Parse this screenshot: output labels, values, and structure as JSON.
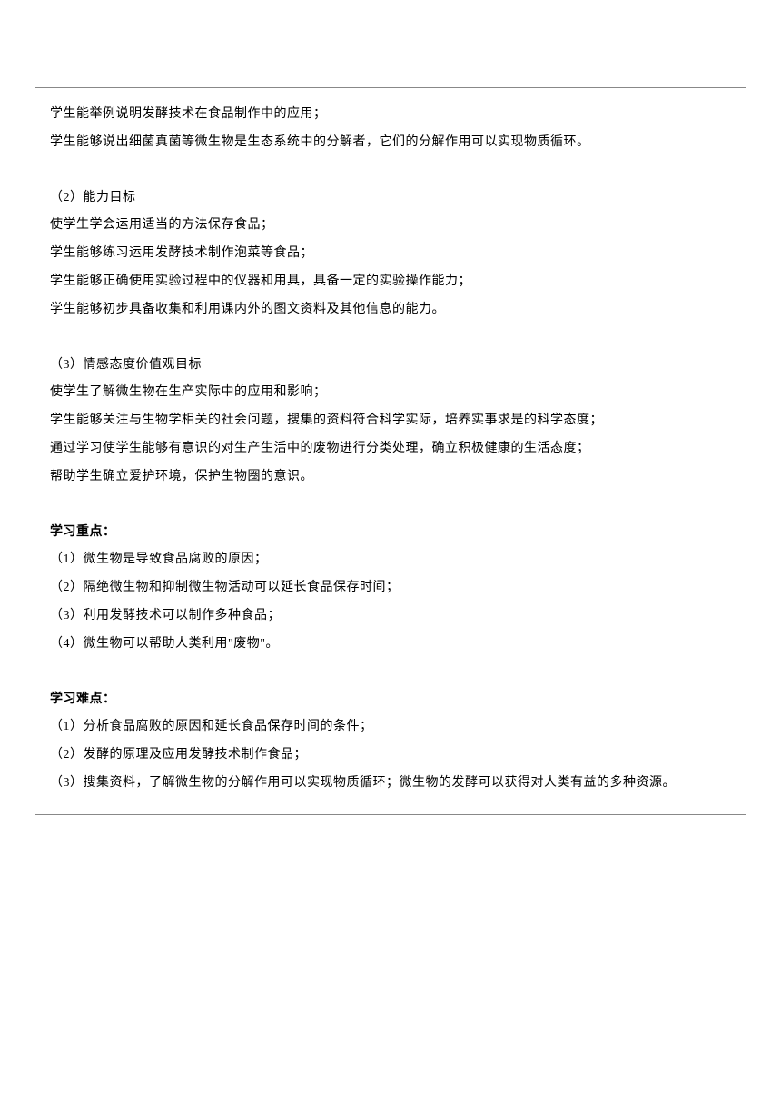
{
  "lines": {
    "l1": "学生能举例说明发酵技术在食品制作中的应用；",
    "l2": "学生能够说出细菌真菌等微生物是生态系统中的分解者，它们的分解作用可以实现物质循环。",
    "l3": "（2）能力目标",
    "l4": "使学生学会运用适当的方法保存食品；",
    "l5": "学生能够练习运用发酵技术制作泡菜等食品；",
    "l6": "学生能够正确使用实验过程中的仪器和用具，具备一定的实验操作能力；",
    "l7": "学生能够初步具备收集和利用课内外的图文资料及其他信息的能力。",
    "l8": "（3）情感态度价值观目标",
    "l9": "使学生了解微生物在生产实际中的应用和影响；",
    "l10": "学生能够关注与生物学相关的社会问题，搜集的资料符合科学实际，培养实事求是的科学态度；",
    "l11": "通过学习使学生能够有意识的对生产生活中的废物进行分类处理，确立积极健康的生活态度；",
    "l12": "帮助学生确立爱护环境，保护生物圈的意识。",
    "l13": "学习重点：",
    "l14": "（1）微生物是导致食品腐败的原因；",
    "l15": "（2）隔绝微生物和抑制微生物活动可以延长食品保存时间；",
    "l16": "（3）利用发酵技术可以制作多种食品；",
    "l17": "（4）微生物可以帮助人类利用\"废物\"。",
    "l18": "学习难点：",
    "l19": "（1）分析食品腐败的原因和延长食品保存时间的条件；",
    "l20": "（2）发酵的原理及应用发酵技术制作食品；",
    "l21": "（3）搜集资料，了解微生物的分解作用可以实现物质循环；微生物的发酵可以获得对人类有益的多种资源。"
  }
}
